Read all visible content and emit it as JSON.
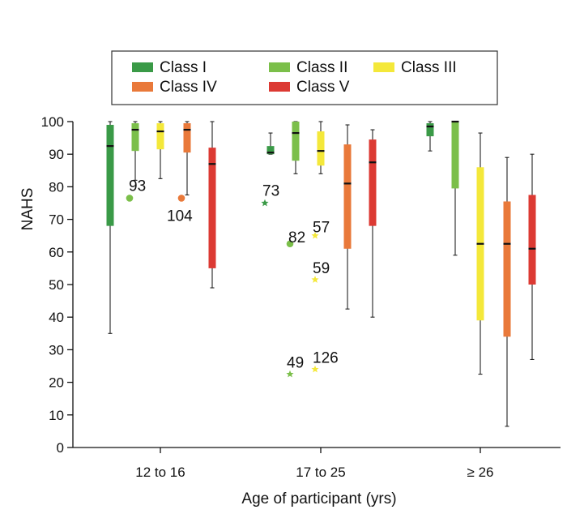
{
  "chart_data": {
    "type": "box",
    "xlabel": "Age of participant (yrs)",
    "ylabel": "NAHS",
    "ylim": [
      0,
      100
    ],
    "yticks": [
      0,
      10,
      20,
      30,
      40,
      50,
      60,
      70,
      80,
      90,
      100
    ],
    "categories": [
      "12 to 16",
      "17 to 25",
      "≥ 26"
    ],
    "legend": {
      "placement": "top",
      "entries": [
        "Class I",
        "Class II",
        "Class III",
        "Class IV",
        "Class V"
      ]
    },
    "series": [
      {
        "name": "Class I",
        "color": "#3a9a47",
        "boxes": [
          {
            "category": "12 to 16",
            "min": 35,
            "q1": 68,
            "median": 92.5,
            "q3": 99,
            "max": 100
          },
          {
            "category": "17 to 25",
            "min": 90,
            "q1": 90,
            "median": 90.5,
            "q3": 92.5,
            "max": 96.5
          },
          {
            "category": "≥ 26",
            "min": 91,
            "q1": 95.5,
            "median": 98.5,
            "q3": 99.5,
            "max": 100
          }
        ],
        "outliers": [
          {
            "category": "17 to 25",
            "value": 75,
            "label": "73",
            "marker": "star"
          }
        ]
      },
      {
        "name": "Class II",
        "color": "#7bbf4a",
        "boxes": [
          {
            "category": "12 to 16",
            "min": 82,
            "q1": 91,
            "median": 97.5,
            "q3": 99.5,
            "max": 100
          },
          {
            "category": "17 to 25",
            "min": 84,
            "q1": 88,
            "median": 96.5,
            "q3": 100,
            "max": 100
          },
          {
            "category": "≥ 26",
            "min": 59,
            "q1": 79.5,
            "median": 100,
            "q3": 100,
            "max": 100
          }
        ],
        "outliers": [
          {
            "category": "12 to 16",
            "value": 76.5,
            "label": "93",
            "marker": "circle"
          },
          {
            "category": "17 to 25",
            "value": 62.5,
            "label": "82",
            "marker": "circle"
          },
          {
            "category": "17 to 25",
            "value": 22.5,
            "label": "49",
            "marker": "star"
          }
        ]
      },
      {
        "name": "Class III",
        "color": "#f4e83a",
        "boxes": [
          {
            "category": "12 to 16",
            "min": 82.5,
            "q1": 91.5,
            "median": 97,
            "q3": 99.5,
            "max": 100
          },
          {
            "category": "17 to 25",
            "min": 84,
            "q1": 86.5,
            "median": 91,
            "q3": 97,
            "max": 100
          },
          {
            "category": "≥ 26",
            "min": 22.5,
            "q1": 39,
            "median": 62.5,
            "q3": 86,
            "max": 96.5
          }
        ],
        "outliers": [
          {
            "category": "17 to 25",
            "value": 65,
            "label": "57",
            "marker": "star"
          },
          {
            "category": "17 to 25",
            "value": 51.5,
            "label": "59",
            "marker": "star"
          },
          {
            "category": "17 to 25",
            "value": 24,
            "label": "126",
            "marker": "star"
          }
        ]
      },
      {
        "name": "Class IV",
        "color": "#e9793a",
        "boxes": [
          {
            "category": "12 to 16",
            "min": 77.5,
            "q1": 90.5,
            "median": 97.5,
            "q3": 99.5,
            "max": 100
          },
          {
            "category": "17 to 25",
            "min": 42.5,
            "q1": 61,
            "median": 81,
            "q3": 93,
            "max": 99
          },
          {
            "category": "≥ 26",
            "min": 6.5,
            "q1": 34,
            "median": 62.5,
            "q3": 75.5,
            "max": 89
          }
        ],
        "outliers": [
          {
            "category": "12 to 16",
            "value": 76.5,
            "label": "104",
            "marker": "circle"
          }
        ]
      },
      {
        "name": "Class V",
        "color": "#dc3a33",
        "boxes": [
          {
            "category": "12 to 16",
            "min": 49,
            "q1": 55,
            "median": 87,
            "q3": 92,
            "max": 100
          },
          {
            "category": "17 to 25",
            "min": 40,
            "q1": 68,
            "median": 87.5,
            "q3": 94.5,
            "max": 97.5
          },
          {
            "category": "≥ 26",
            "min": 27,
            "q1": 50,
            "median": 61,
            "q3": 77.5,
            "max": 90
          }
        ],
        "outliers": []
      }
    ]
  }
}
